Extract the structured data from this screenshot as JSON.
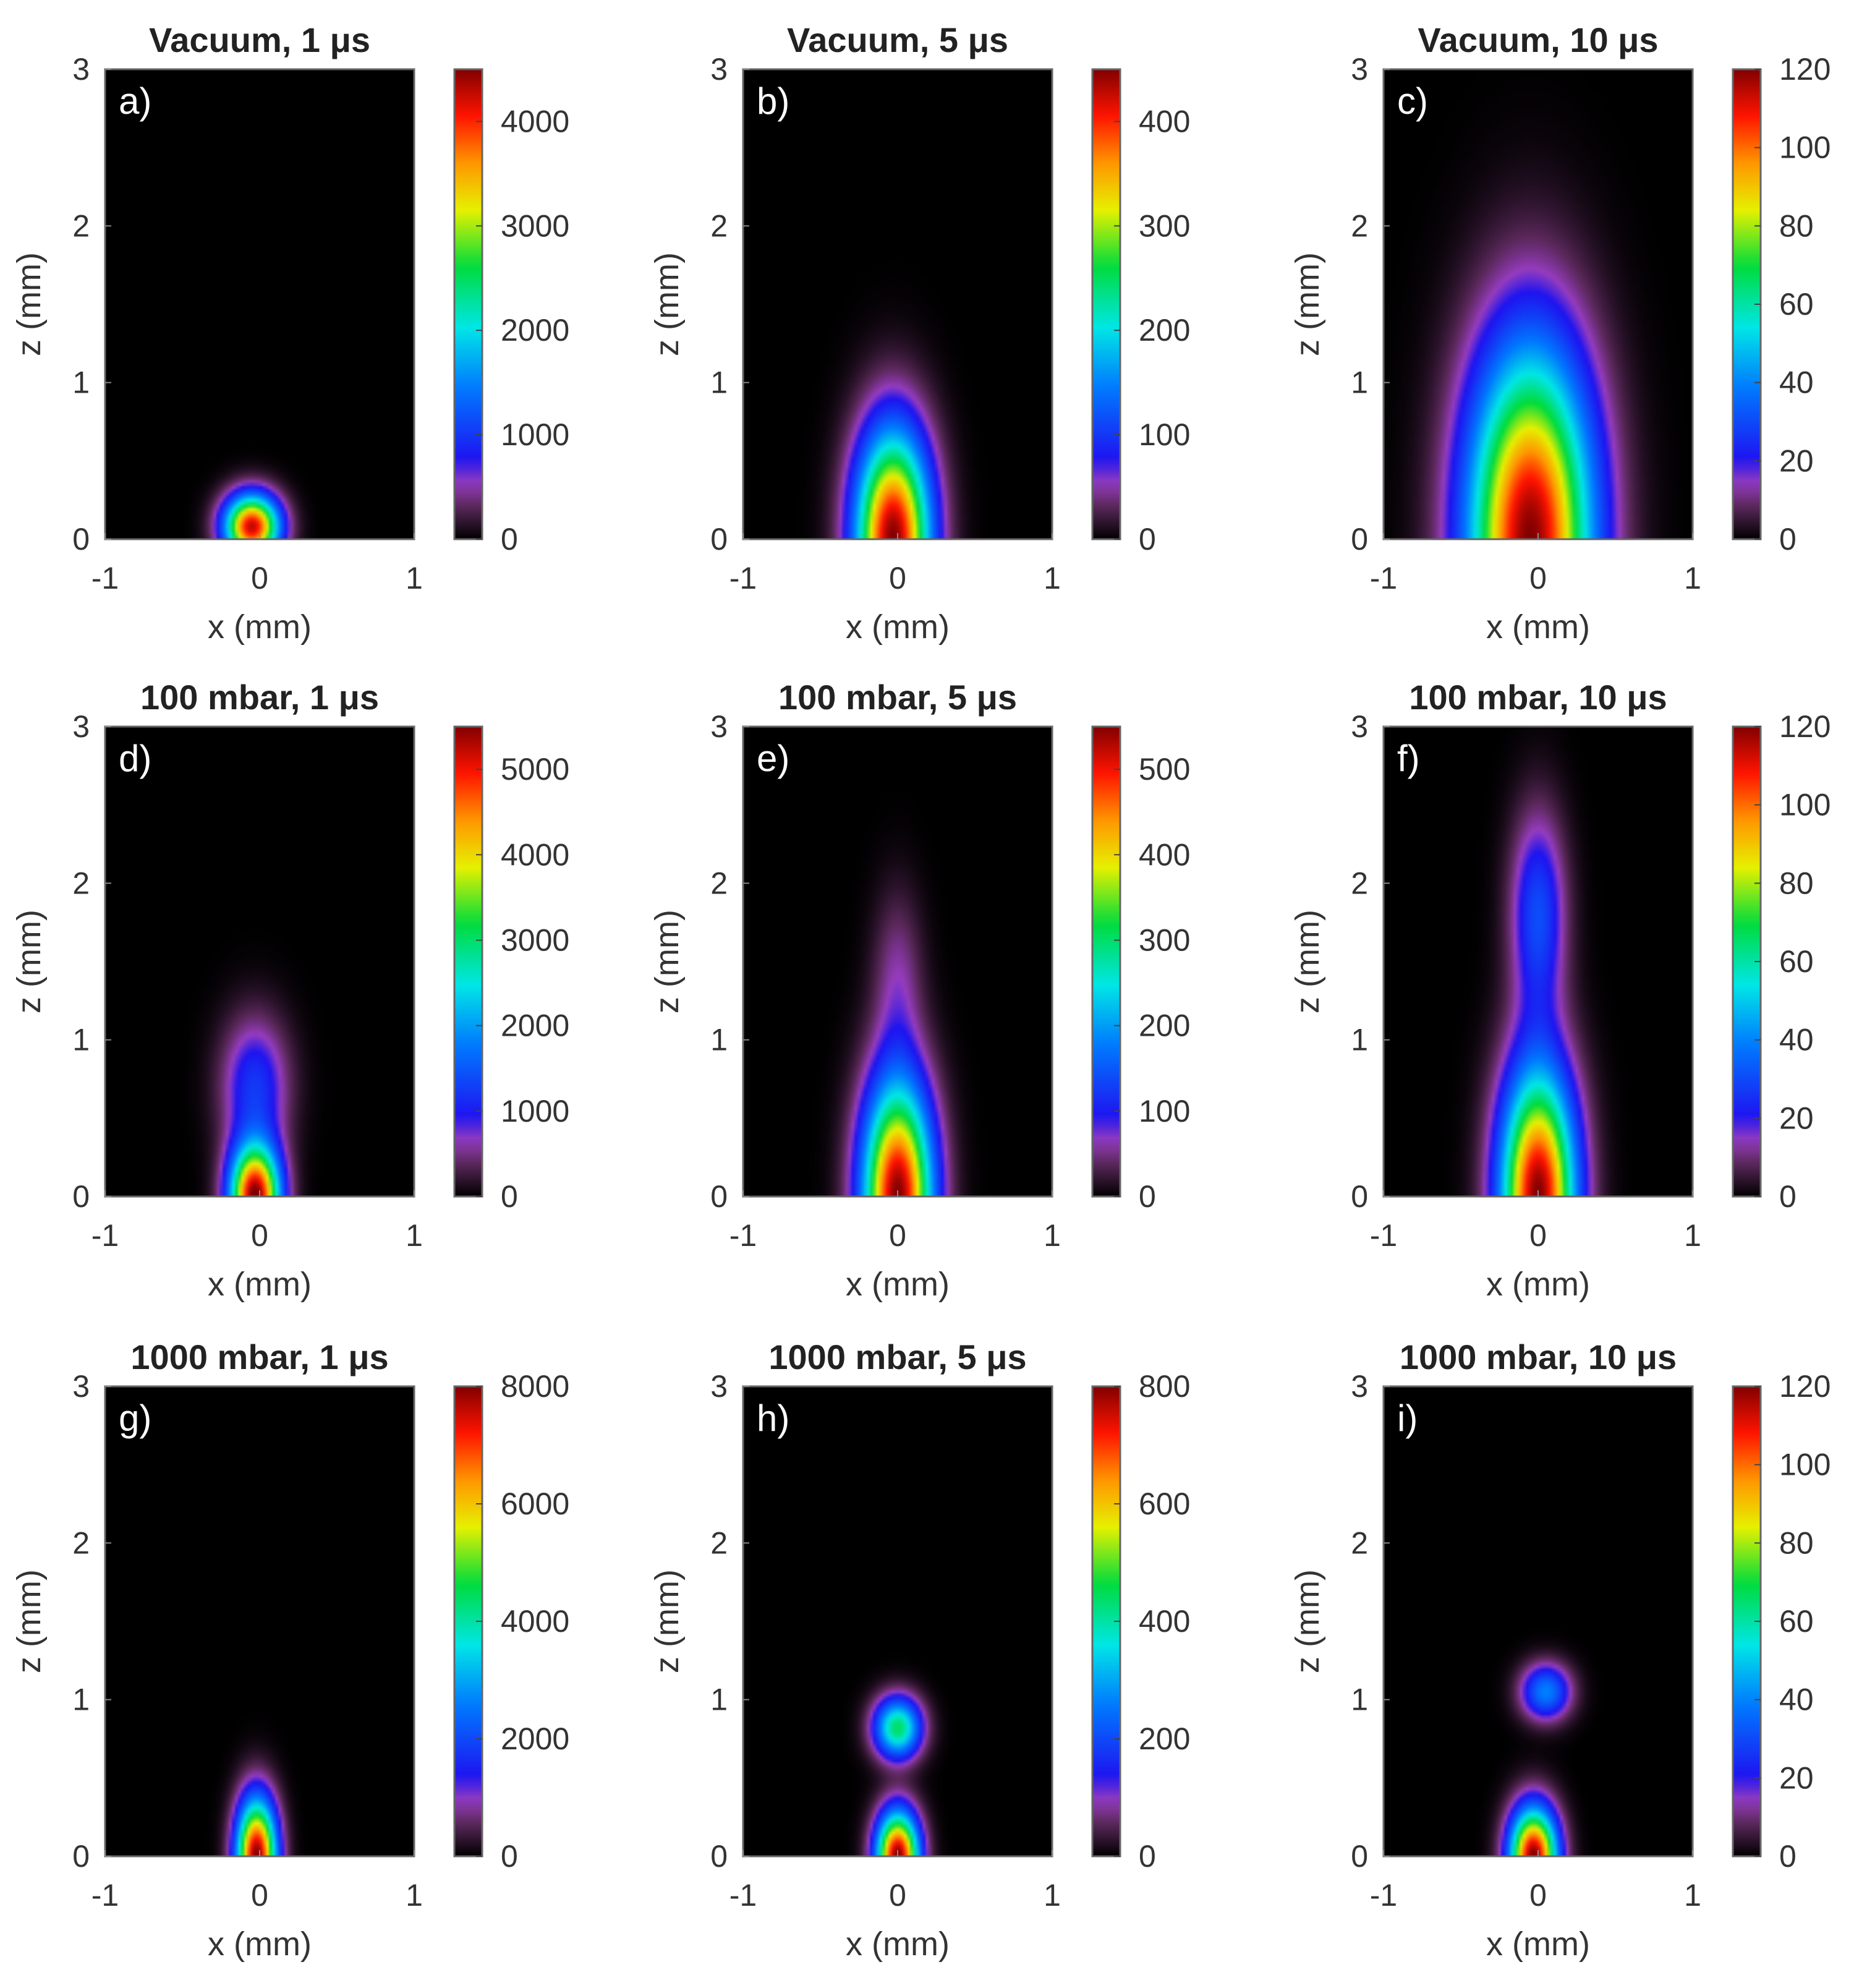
{
  "chart_data": [
    {
      "type": "heatmap",
      "panel_label": "a)",
      "title": "Vacuum, 1 μs",
      "xlabel": "x (mm)",
      "ylabel": "z (mm)",
      "xlim": [
        -1,
        1
      ],
      "ylim": [
        0,
        3
      ],
      "x_ticks": [
        "-1",
        "0",
        "1"
      ],
      "y_ticks": [
        "0",
        "1",
        "2",
        "3"
      ],
      "colorbar": {
        "min": 0,
        "max": 4500,
        "ticks": [
          "0",
          "1000",
          "2000",
          "3000",
          "4000"
        ],
        "colormap": "black-purple-blue-cyan-green-yellow-red"
      },
      "blobs": [
        {
          "x": -0.05,
          "z": 0.08,
          "sx": 0.22,
          "sz": 0.25,
          "peak": 0.95
        }
      ]
    },
    {
      "type": "heatmap",
      "panel_label": "b)",
      "title": "Vacuum, 5 μs",
      "xlabel": "x (mm)",
      "ylabel": "z (mm)",
      "xlim": [
        -1,
        1
      ],
      "ylim": [
        0,
        3
      ],
      "x_ticks": [
        "-1",
        "0",
        "1"
      ],
      "y_ticks": [
        "0",
        "1",
        "2",
        "3"
      ],
      "colorbar": {
        "min": 0,
        "max": 450,
        "ticks": [
          "0",
          "100",
          "200",
          "300",
          "400"
        ],
        "colormap": "black-purple-blue-cyan-green-yellow-red"
      },
      "blobs": [
        {
          "x": -0.03,
          "z": 0.0,
          "sx": 0.3,
          "sz": 0.85,
          "peak": 1.0
        }
      ]
    },
    {
      "type": "heatmap",
      "panel_label": "c)",
      "title": "Vacuum, 10 μs",
      "xlabel": "x (mm)",
      "ylabel": "z (mm)",
      "xlim": [
        -1,
        1
      ],
      "ylim": [
        0,
        3
      ],
      "x_ticks": [
        "-1",
        "0",
        "1"
      ],
      "y_ticks": [
        "0",
        "1",
        "2",
        "3"
      ],
      "colorbar": {
        "min": 0,
        "max": 120,
        "ticks": [
          "0",
          "20",
          "40",
          "60",
          "80",
          "100",
          "120"
        ],
        "colormap": "black-purple-blue-cyan-green-yellow-red"
      },
      "blobs": [
        {
          "x": -0.05,
          "z": 0.0,
          "sx": 0.5,
          "sz": 1.5,
          "peak": 1.0
        }
      ]
    },
    {
      "type": "heatmap",
      "panel_label": "d)",
      "title": "100 mbar, 1 μs",
      "xlabel": "x (mm)",
      "ylabel": "z (mm)",
      "xlim": [
        -1,
        1
      ],
      "ylim": [
        0,
        3
      ],
      "x_ticks": [
        "-1",
        "0",
        "1"
      ],
      "y_ticks": [
        "0",
        "1",
        "2",
        "3"
      ],
      "colorbar": {
        "min": 0,
        "max": 5500,
        "ticks": [
          "0",
          "1000",
          "2000",
          "3000",
          "4000",
          "5000"
        ],
        "colormap": "black-purple-blue-cyan-green-yellow-red"
      },
      "blobs": [
        {
          "x": -0.03,
          "z": 0.0,
          "sx": 0.2,
          "sz": 0.4,
          "peak": 1.0
        },
        {
          "x": -0.03,
          "z": 0.7,
          "sx": 0.27,
          "sz": 0.55,
          "peak": 0.22
        }
      ]
    },
    {
      "type": "heatmap",
      "panel_label": "e)",
      "title": "100 mbar, 5 μs",
      "xlabel": "x (mm)",
      "ylabel": "z (mm)",
      "xlim": [
        -1,
        1
      ],
      "ylim": [
        0,
        3
      ],
      "x_ticks": [
        "-1",
        "0",
        "1"
      ],
      "y_ticks": [
        "0",
        "1",
        "2",
        "3"
      ],
      "colorbar": {
        "min": 0,
        "max": 550,
        "ticks": [
          "0",
          "100",
          "200",
          "300",
          "400",
          "500"
        ],
        "colormap": "black-purple-blue-cyan-green-yellow-red"
      },
      "blobs": [
        {
          "x": 0.0,
          "z": 0.0,
          "sx": 0.28,
          "sz": 0.9,
          "peak": 1.0
        },
        {
          "x": 0.0,
          "z": 1.4,
          "sx": 0.2,
          "sz": 0.7,
          "peak": 0.1
        }
      ]
    },
    {
      "type": "heatmap",
      "panel_label": "f)",
      "title": "100 mbar, 10 μs",
      "xlabel": "x (mm)",
      "ylabel": "z (mm)",
      "xlim": [
        -1,
        1
      ],
      "ylim": [
        0,
        3
      ],
      "x_ticks": [
        "-1",
        "0",
        "1"
      ],
      "y_ticks": [
        "0",
        "1",
        "2",
        "3"
      ],
      "colorbar": {
        "min": 0,
        "max": 120,
        "ticks": [
          "0",
          "20",
          "40",
          "60",
          "80",
          "100",
          "120"
        ],
        "colormap": "black-purple-blue-cyan-green-yellow-red"
      },
      "blobs": [
        {
          "x": 0.0,
          "z": 0.0,
          "sx": 0.3,
          "sz": 1.0,
          "peak": 1.0
        },
        {
          "x": 0.0,
          "z": 1.8,
          "sx": 0.22,
          "sz": 0.8,
          "peak": 0.25
        }
      ]
    },
    {
      "type": "heatmap",
      "panel_label": "g)",
      "title": "1000 mbar, 1 μs",
      "xlabel": "x (mm)",
      "ylabel": "z (mm)",
      "xlim": [
        -1,
        1
      ],
      "ylim": [
        0,
        3
      ],
      "x_ticks": [
        "-1",
        "0",
        "1"
      ],
      "y_ticks": [
        "0",
        "1",
        "2",
        "3"
      ],
      "colorbar": {
        "min": 0,
        "max": 8000,
        "ticks": [
          "0",
          "2000",
          "4000",
          "6000",
          "8000"
        ],
        "colormap": "black-purple-blue-cyan-green-yellow-red"
      },
      "blobs": [
        {
          "x": -0.02,
          "z": 0.0,
          "sx": 0.16,
          "sz": 0.45,
          "peak": 1.0
        }
      ]
    },
    {
      "type": "heatmap",
      "panel_label": "h)",
      "title": "1000 mbar, 5 μs",
      "xlabel": "x (mm)",
      "ylabel": "z (mm)",
      "xlim": [
        -1,
        1
      ],
      "ylim": [
        0,
        3
      ],
      "x_ticks": [
        "-1",
        "0",
        "1"
      ],
      "y_ticks": [
        "0",
        "1",
        "2",
        "3"
      ],
      "colorbar": {
        "min": 0,
        "max": 800,
        "ticks": [
          "0",
          "200",
          "400",
          "600",
          "800"
        ],
        "colormap": "black-purple-blue-cyan-green-yellow-red"
      },
      "blobs": [
        {
          "x": 0.0,
          "z": 0.0,
          "sx": 0.17,
          "sz": 0.35,
          "peak": 1.0
        },
        {
          "x": 0.0,
          "z": 0.82,
          "sx": 0.19,
          "sz": 0.24,
          "peak": 0.55
        }
      ]
    },
    {
      "type": "heatmap",
      "panel_label": "i)",
      "title": "1000 mbar, 10 μs",
      "xlabel": "x (mm)",
      "ylabel": "z (mm)",
      "xlim": [
        -1,
        1
      ],
      "ylim": [
        0,
        3
      ],
      "x_ticks": [
        "-1",
        "0",
        "1"
      ],
      "y_ticks": [
        "0",
        "1",
        "2",
        "3"
      ],
      "colorbar": {
        "min": 0,
        "max": 120,
        "ticks": [
          "0",
          "20",
          "40",
          "60",
          "80",
          "100",
          "120"
        ],
        "colormap": "black-purple-blue-cyan-green-yellow-red"
      },
      "blobs": [
        {
          "x": -0.03,
          "z": 0.0,
          "sx": 0.19,
          "sz": 0.38,
          "peak": 1.0
        },
        {
          "x": 0.05,
          "z": 1.05,
          "sx": 0.2,
          "sz": 0.22,
          "peak": 0.33
        }
      ]
    }
  ]
}
